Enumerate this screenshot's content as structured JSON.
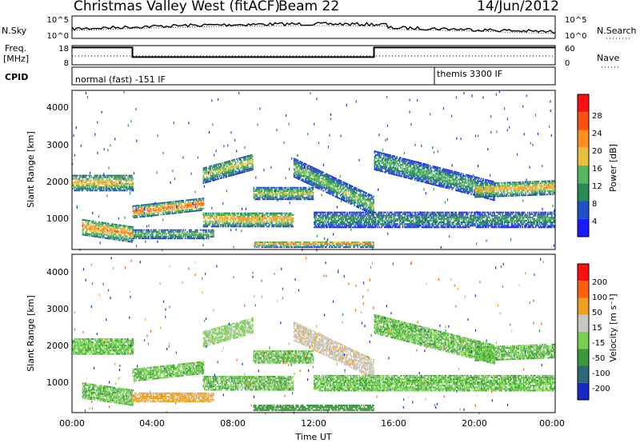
{
  "header": {
    "title": "Christmas Valley West (fitACF)",
    "beam": "Beam 22",
    "date": "14/Jun/2012"
  },
  "noise_panel": {
    "left_label": "N.Sky",
    "right_label": "N.Search",
    "left_ticks": [
      "10^5",
      "10^0"
    ],
    "right_ticks": [
      "10^5",
      "10^0"
    ]
  },
  "freq_panel": {
    "left_label_line1": "Freq.",
    "left_label_line2": "[MHz]",
    "right_label": "Nave",
    "left_ticks": [
      "18",
      "8"
    ],
    "right_ticks": [
      "60",
      "0"
    ]
  },
  "cpid_panel": {
    "label": "CPID",
    "modes": [
      "normal (fast) -151 IF",
      "themis 3300 IF"
    ]
  },
  "x_axis": {
    "label": "Time UT",
    "tick_labels": [
      "00:00",
      "04:00",
      "08:00",
      "12:00",
      "16:00",
      "20:00",
      "00:00"
    ]
  },
  "power_panel": {
    "ylabel": "Slant Range [km]",
    "y_ticks": [
      "4000",
      "3000",
      "2000",
      "1000"
    ],
    "cbar_label": "Power [dB]",
    "cbar_ticks": [
      "28",
      "24",
      "20",
      "16",
      "12",
      "8",
      "4"
    ]
  },
  "velocity_panel": {
    "ylabel": "Slant Range [km]",
    "y_ticks": [
      "4000",
      "3000",
      "2000",
      "1000"
    ],
    "cbar_label": "Velocity [m s⁻¹]",
    "cbar_ticks": [
      "200",
      "100",
      "50",
      "15",
      "-15",
      "-50",
      "-100",
      "-200"
    ]
  },
  "colors": {
    "power_scale": [
      "#1a1aff",
      "#2050c8",
      "#2a8a55",
      "#55b860",
      "#e8c040",
      "#ff9020",
      "#ff5010",
      "#ff1010"
    ],
    "velocity_scale": [
      "#1a28c8",
      "#2e6878",
      "#3a9a3a",
      "#78d050",
      "#c8c8c0",
      "#f0a020",
      "#ff6010",
      "#ff1010"
    ]
  },
  "chart_data": {
    "type": "heatmap",
    "x_range_hours": [
      0,
      24
    ],
    "y_range_km": [
      180,
      4500
    ],
    "frequency_mhz": [
      {
        "start_h": 0,
        "end_h": 3,
        "value": 17
      },
      {
        "start_h": 3,
        "end_h": 15,
        "value": 12
      },
      {
        "start_h": 15,
        "end_h": 24,
        "value": 17
      }
    ],
    "mode_switch_hour": 18,
    "scatter_bands": [
      {
        "start_h": 0.0,
        "end_h": 3.0,
        "center_km": 2000,
        "halfwidth_km": 220,
        "slope": 0,
        "power": 20,
        "velocity": -10
      },
      {
        "start_h": 3.0,
        "end_h": 6.5,
        "center_km": 1200,
        "halfwidth_km": 160,
        "slope": 60,
        "power": 26,
        "velocity": -10
      },
      {
        "start_h": 0.5,
        "end_h": 3.0,
        "center_km": 800,
        "halfwidth_km": 220,
        "slope": -80,
        "power": 24,
        "velocity": -10
      },
      {
        "start_h": 6.5,
        "end_h": 11.0,
        "center_km": 1000,
        "halfwidth_km": 200,
        "slope": 0,
        "power": 22,
        "velocity": -10
      },
      {
        "start_h": 6.5,
        "end_h": 9.0,
        "center_km": 2200,
        "halfwidth_km": 220,
        "slope": 150,
        "power": 18,
        "velocity": 10
      },
      {
        "start_h": 9.0,
        "end_h": 12.0,
        "center_km": 1700,
        "halfwidth_km": 160,
        "slope": 0,
        "power": 18,
        "velocity": -10
      },
      {
        "start_h": 11.0,
        "end_h": 15.0,
        "center_km": 2400,
        "halfwidth_km": 250,
        "slope": -260,
        "power": 16,
        "velocity": 40
      },
      {
        "start_h": 15.0,
        "end_h": 21.0,
        "center_km": 2600,
        "halfwidth_km": 250,
        "slope": -140,
        "power": 14,
        "velocity": -10
      },
      {
        "start_h": 20.0,
        "end_h": 24.0,
        "center_km": 1800,
        "halfwidth_km": 200,
        "slope": 20,
        "power": 22,
        "velocity": -10
      },
      {
        "start_h": 12.0,
        "end_h": 24.0,
        "center_km": 1000,
        "halfwidth_km": 220,
        "slope": 0,
        "power": 12,
        "velocity": -10
      },
      {
        "start_h": 9.0,
        "end_h": 15.0,
        "center_km": 330,
        "halfwidth_km": 90,
        "slope": 0,
        "power": 22,
        "velocity": -30
      },
      {
        "start_h": 3.0,
        "end_h": 7.0,
        "center_km": 600,
        "halfwidth_km": 120,
        "slope": 0,
        "power": 16,
        "velocity": 60
      }
    ]
  }
}
